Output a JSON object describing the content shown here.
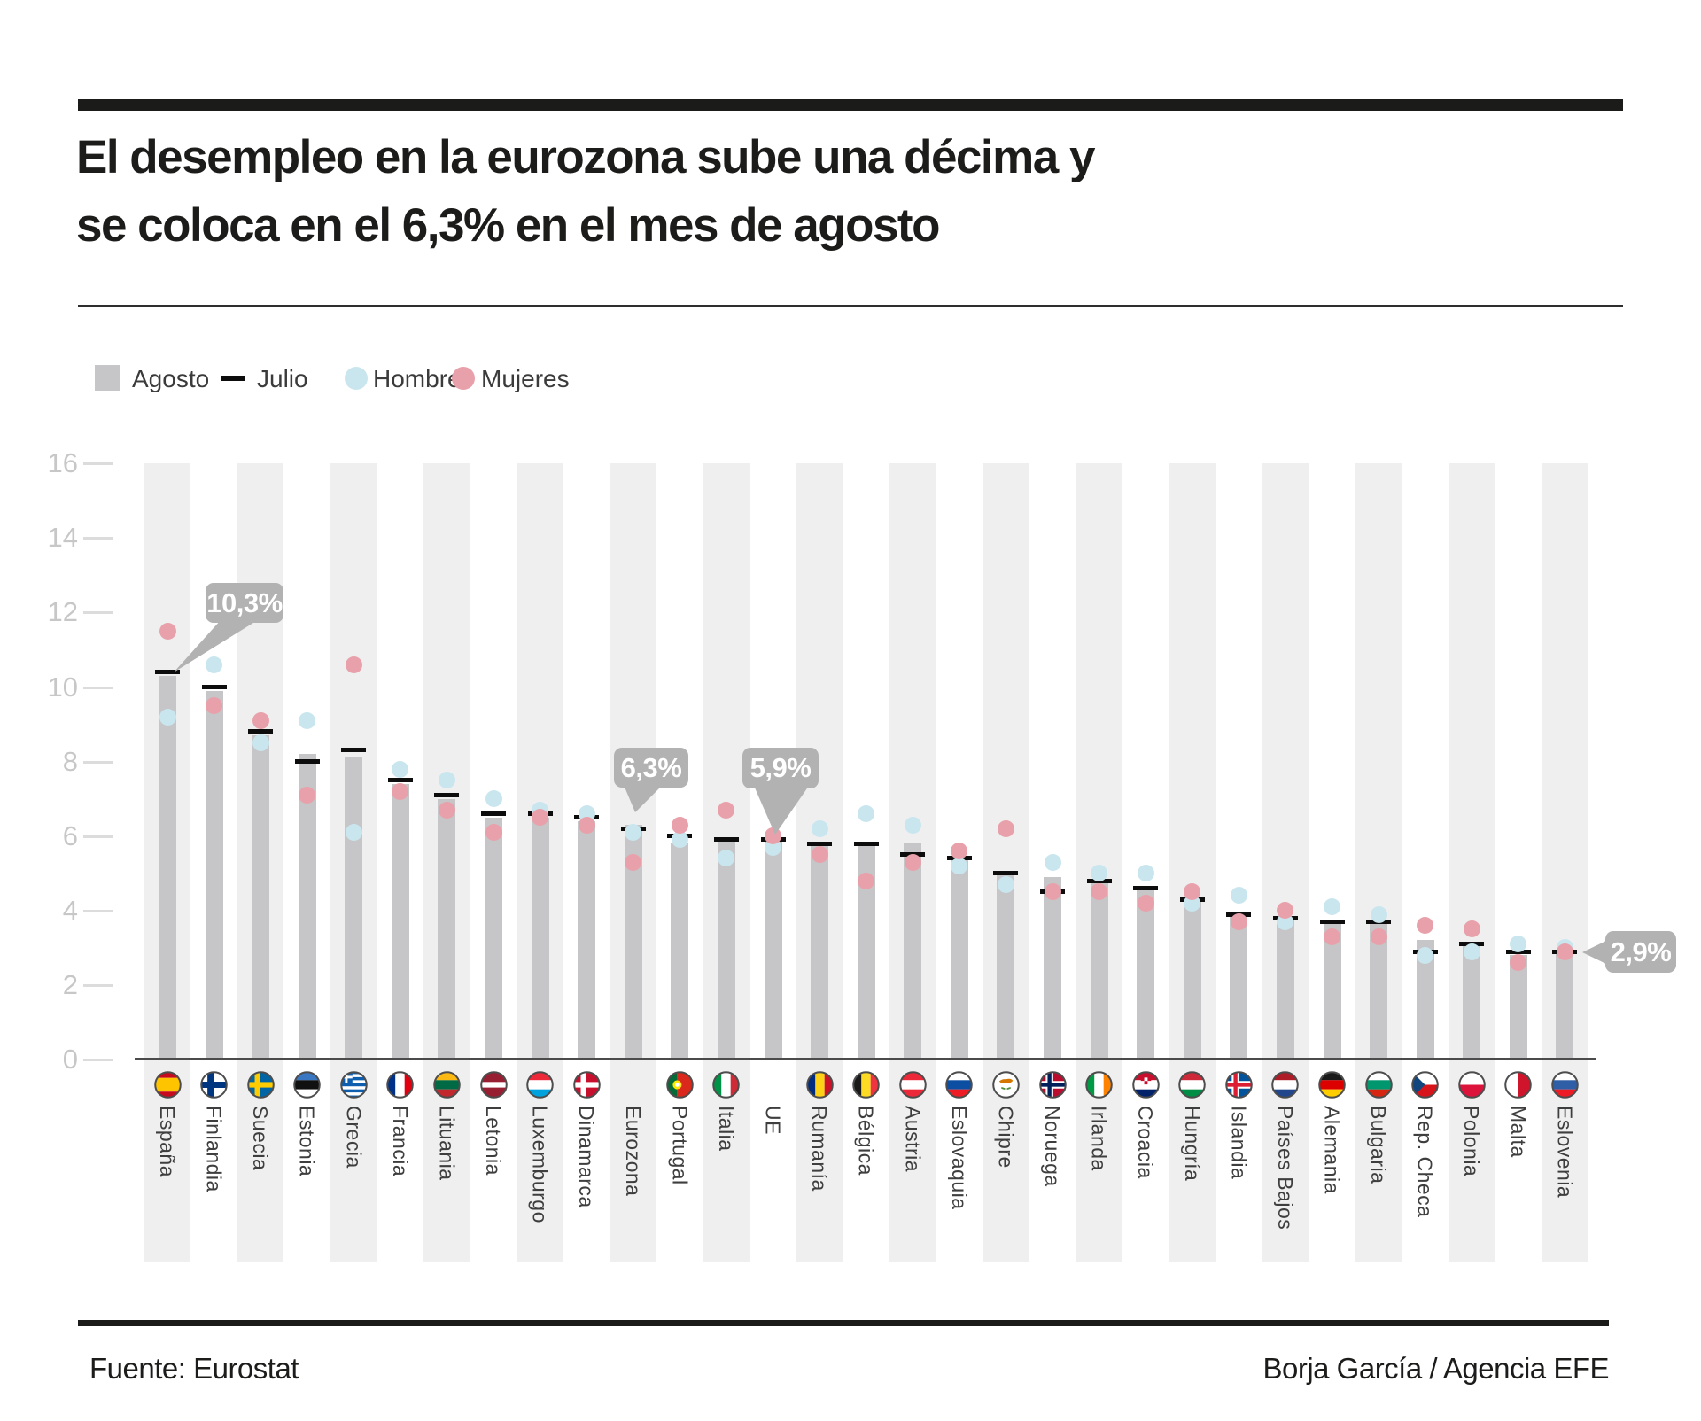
{
  "title": {
    "line1": "El desempleo en la eurozona sube una décima y",
    "line2": "se coloca en el 6,3% en el mes de agosto"
  },
  "legend": {
    "items": [
      {
        "label": "Agosto",
        "swatch": "square-gray"
      },
      {
        "label": "Julio",
        "swatch": "dash-black"
      },
      {
        "label": "Hombres",
        "swatch": "circle-blue"
      },
      {
        "label": "Mujeres",
        "swatch": "circle-pink"
      }
    ]
  },
  "colors": {
    "bar_agosto": "#c6c5c7",
    "line_julio": "#0d0d0d",
    "dot_hombres": "#c9e6ef",
    "dot_mujeres": "#e8a1aa",
    "stripe": "#efeff0",
    "callout": "#b2b2b3",
    "baseline": "#4b4b4b",
    "tick_text": "#c7c7c7"
  },
  "chart_data": {
    "type": "bar",
    "title": "El desempleo en la eurozona sube una décima y se coloca en el 6,3% en el mes de agosto",
    "ylabel": "",
    "xlabel": "",
    "unit": "%",
    "ylim": [
      0,
      16
    ],
    "yticks": [
      0,
      2,
      4,
      6,
      8,
      10,
      12,
      14,
      16
    ],
    "grid": "tick-stubs-only",
    "legend_position": "top",
    "series_legend": {
      "bar": "Agosto",
      "line": "Julio",
      "dot_blue": "Hombres",
      "dot_pink": "Mujeres"
    },
    "countries": [
      {
        "name": "España",
        "flag": "es",
        "agosto": 10.3,
        "julio": 10.4,
        "hombres": 9.2,
        "mujeres": 11.5,
        "callout": "10,3%"
      },
      {
        "name": "Finlandia",
        "flag": "fi",
        "agosto": 9.9,
        "julio": 10.0,
        "hombres": 10.6,
        "mujeres": 9.5,
        "callout": null
      },
      {
        "name": "Suecia",
        "flag": "se",
        "agosto": 8.7,
        "julio": 8.8,
        "hombres": 8.5,
        "mujeres": 9.1,
        "callout": null
      },
      {
        "name": "Estonia",
        "flag": "ee",
        "agosto": 8.2,
        "julio": 8.0,
        "hombres": 9.1,
        "mujeres": 7.1,
        "callout": null
      },
      {
        "name": "Grecia",
        "flag": "gr",
        "agosto": 8.1,
        "julio": 8.3,
        "hombres": 6.1,
        "mujeres": 10.6,
        "callout": null
      },
      {
        "name": "Francia",
        "flag": "fr",
        "agosto": 7.4,
        "julio": 7.5,
        "hombres": 7.8,
        "mujeres": 7.2,
        "callout": null
      },
      {
        "name": "Lituania",
        "flag": "lt",
        "agosto": 7.0,
        "julio": 7.1,
        "hombres": 7.5,
        "mujeres": 6.7,
        "callout": null
      },
      {
        "name": "Letonia",
        "flag": "lv",
        "agosto": 6.5,
        "julio": 6.6,
        "hombres": 7.0,
        "mujeres": 6.1,
        "callout": null
      },
      {
        "name": "Luxemburgo",
        "flag": "lu",
        "agosto": 6.5,
        "julio": 6.6,
        "hombres": 6.7,
        "mujeres": 6.5,
        "callout": null
      },
      {
        "name": "Dinamarca",
        "flag": "dk",
        "agosto": 6.4,
        "julio": 6.5,
        "hombres": 6.6,
        "mujeres": 6.3,
        "callout": null
      },
      {
        "name": "Eurozona",
        "flag": null,
        "agosto": 6.3,
        "julio": 6.2,
        "hombres": 6.1,
        "mujeres": 5.3,
        "callout": "6,3%"
      },
      {
        "name": "Portugal",
        "flag": "pt",
        "agosto": 5.8,
        "julio": 6.0,
        "hombres": 5.9,
        "mujeres": 6.3,
        "callout": null
      },
      {
        "name": "Italia",
        "flag": "it",
        "agosto": 5.9,
        "julio": 5.9,
        "hombres": 5.4,
        "mujeres": 6.7,
        "callout": null
      },
      {
        "name": "UE",
        "flag": null,
        "agosto": 5.9,
        "julio": 5.9,
        "hombres": 5.7,
        "mujeres": 6.0,
        "callout": "5,9%"
      },
      {
        "name": "Rumanía",
        "flag": "ro",
        "agosto": 5.8,
        "julio": 5.8,
        "hombres": 6.2,
        "mujeres": 5.5,
        "callout": null
      },
      {
        "name": "Bélgica",
        "flag": "be",
        "agosto": 5.8,
        "julio": 5.8,
        "hombres": 6.6,
        "mujeres": 4.8,
        "callout": null
      },
      {
        "name": "Austria",
        "flag": "at",
        "agosto": 5.8,
        "julio": 5.5,
        "hombres": 6.3,
        "mujeres": 5.3,
        "callout": null
      },
      {
        "name": "Eslovaquia",
        "flag": "sk",
        "agosto": 5.4,
        "julio": 5.4,
        "hombres": 5.2,
        "mujeres": 5.6,
        "callout": null
      },
      {
        "name": "Chipre",
        "flag": "cy",
        "agosto": 5.0,
        "julio": 5.0,
        "hombres": 4.7,
        "mujeres": 6.2,
        "callout": null
      },
      {
        "name": "Noruega",
        "flag": "no",
        "agosto": 4.9,
        "julio": 4.5,
        "hombres": 5.3,
        "mujeres": 4.5,
        "callout": null
      },
      {
        "name": "Irlanda",
        "flag": "ie",
        "agosto": 4.8,
        "julio": 4.8,
        "hombres": 5.0,
        "mujeres": 4.5,
        "callout": null
      },
      {
        "name": "Croacia",
        "flag": "hr",
        "agosto": 4.6,
        "julio": 4.6,
        "hombres": 5.0,
        "mujeres": 4.2,
        "callout": null
      },
      {
        "name": "Hungría",
        "flag": "hu",
        "agosto": 4.3,
        "julio": 4.3,
        "hombres": 4.2,
        "mujeres": 4.5,
        "callout": null
      },
      {
        "name": "Islandia",
        "flag": "is",
        "agosto": 3.9,
        "julio": 3.9,
        "hombres": 4.4,
        "mujeres": 3.7,
        "callout": null
      },
      {
        "name": "Países Bajos",
        "flag": "nl",
        "agosto": 3.8,
        "julio": 3.8,
        "hombres": 3.7,
        "mujeres": 4.0,
        "callout": null
      },
      {
        "name": "Alemania",
        "flag": "de",
        "agosto": 3.7,
        "julio": 3.7,
        "hombres": 4.1,
        "mujeres": 3.3,
        "callout": null
      },
      {
        "name": "Bulgaria",
        "flag": "bg",
        "agosto": 3.7,
        "julio": 3.7,
        "hombres": 3.9,
        "mujeres": 3.3,
        "callout": null
      },
      {
        "name": "Rep. Checa",
        "flag": "cz",
        "agosto": 3.2,
        "julio": 2.9,
        "hombres": 2.8,
        "mujeres": 3.6,
        "callout": null
      },
      {
        "name": "Polonia",
        "flag": "pl",
        "agosto": 3.1,
        "julio": 3.1,
        "hombres": 2.9,
        "mujeres": 3.5,
        "callout": null
      },
      {
        "name": "Malta",
        "flag": "mt",
        "agosto": 2.8,
        "julio": 2.9,
        "hombres": 3.1,
        "mujeres": 2.6,
        "callout": null
      },
      {
        "name": "Eslovenia",
        "flag": "si",
        "agosto": 2.9,
        "julio": 2.9,
        "hombres": 3.0,
        "mujeres": 2.9,
        "callout": "2,9%"
      }
    ]
  },
  "footer": {
    "source": "Fuente: Eurostat",
    "credit": "Borja García / Agencia EFE"
  }
}
